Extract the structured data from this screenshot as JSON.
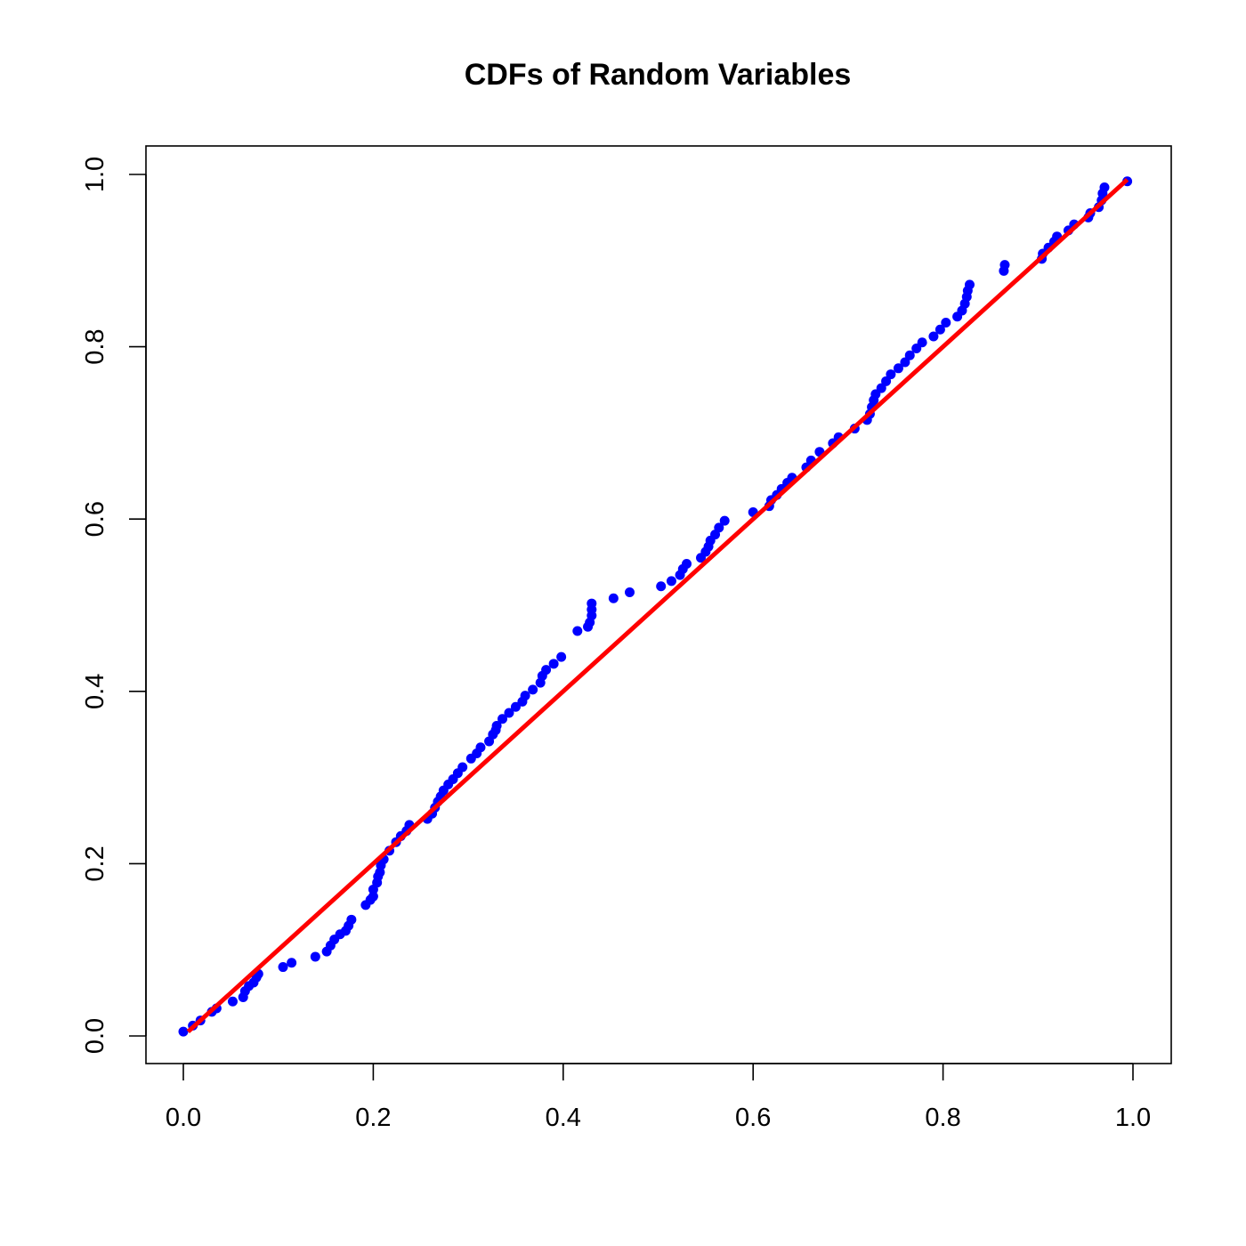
{
  "chart_data": {
    "type": "scatter",
    "title": "CDFs of Random Variables",
    "xlabel": "",
    "ylabel": "",
    "xlim": [
      0.0,
      1.0
    ],
    "ylim": [
      0.0,
      1.0
    ],
    "x_ticks": [
      "0.0",
      "0.2",
      "0.4",
      "0.6",
      "0.8",
      "1.0"
    ],
    "y_ticks": [
      "0.0",
      "0.2",
      "0.4",
      "0.6",
      "0.8",
      "1.0"
    ],
    "grid": false,
    "legend": "none",
    "colors": {
      "points": "#0000ff",
      "line": "#ff0000",
      "axes": "#000000",
      "background": "#ffffff"
    },
    "series": [
      {
        "kind": "points",
        "x": [
          0.0,
          0.01,
          0.018,
          0.03,
          0.035,
          0.052,
          0.063,
          0.065,
          0.069,
          0.074,
          0.077,
          0.079,
          0.105,
          0.114,
          0.139,
          0.151,
          0.155,
          0.159,
          0.165,
          0.171,
          0.174,
          0.177,
          0.192,
          0.197,
          0.2,
          0.2,
          0.204,
          0.205,
          0.207,
          0.208,
          0.211,
          0.217,
          0.224,
          0.229,
          0.235,
          0.238,
          0.257,
          0.262,
          0.265,
          0.268,
          0.271,
          0.274,
          0.279,
          0.284,
          0.289,
          0.294,
          0.303,
          0.309,
          0.313,
          0.322,
          0.326,
          0.329,
          0.33,
          0.336,
          0.343,
          0.35,
          0.357,
          0.36,
          0.368,
          0.376,
          0.378,
          0.382,
          0.39,
          0.398,
          0.415,
          0.426,
          0.428,
          0.43,
          0.43,
          0.43,
          0.453,
          0.47,
          0.503,
          0.514,
          0.523,
          0.526,
          0.53,
          0.545,
          0.55,
          0.553,
          0.555,
          0.56,
          0.564,
          0.57,
          0.6,
          0.617,
          0.619,
          0.625,
          0.63,
          0.636,
          0.641,
          0.656,
          0.661,
          0.67,
          0.684,
          0.69,
          0.707,
          0.72,
          0.723,
          0.725,
          0.727,
          0.729,
          0.735,
          0.74,
          0.745,
          0.753,
          0.76,
          0.765,
          0.772,
          0.778,
          0.79,
          0.797,
          0.803,
          0.815,
          0.82,
          0.823,
          0.825,
          0.826,
          0.828,
          0.864,
          0.865,
          0.904,
          0.905,
          0.911,
          0.917,
          0.92,
          0.932,
          0.938,
          0.953,
          0.955,
          0.964,
          0.967,
          0.968,
          0.97,
          0.994
        ],
        "y": [
          0.005,
          0.012,
          0.018,
          0.028,
          0.032,
          0.04,
          0.045,
          0.052,
          0.058,
          0.062,
          0.068,
          0.072,
          0.08,
          0.085,
          0.092,
          0.098,
          0.105,
          0.112,
          0.118,
          0.122,
          0.128,
          0.135,
          0.152,
          0.158,
          0.162,
          0.17,
          0.178,
          0.185,
          0.19,
          0.198,
          0.205,
          0.215,
          0.225,
          0.232,
          0.238,
          0.245,
          0.252,
          0.258,
          0.265,
          0.272,
          0.278,
          0.285,
          0.292,
          0.298,
          0.305,
          0.312,
          0.322,
          0.328,
          0.335,
          0.342,
          0.35,
          0.355,
          0.36,
          0.368,
          0.375,
          0.382,
          0.388,
          0.395,
          0.402,
          0.41,
          0.418,
          0.425,
          0.432,
          0.44,
          0.47,
          0.475,
          0.48,
          0.488,
          0.495,
          0.502,
          0.508,
          0.515,
          0.522,
          0.528,
          0.535,
          0.542,
          0.548,
          0.555,
          0.562,
          0.568,
          0.575,
          0.582,
          0.59,
          0.598,
          0.608,
          0.615,
          0.622,
          0.628,
          0.635,
          0.642,
          0.648,
          0.66,
          0.668,
          0.678,
          0.688,
          0.695,
          0.705,
          0.715,
          0.722,
          0.73,
          0.738,
          0.745,
          0.752,
          0.76,
          0.768,
          0.775,
          0.782,
          0.79,
          0.798,
          0.805,
          0.812,
          0.82,
          0.828,
          0.835,
          0.842,
          0.85,
          0.858,
          0.865,
          0.872,
          0.888,
          0.895,
          0.902,
          0.908,
          0.915,
          0.922,
          0.928,
          0.935,
          0.942,
          0.95,
          0.955,
          0.962,
          0.97,
          0.978,
          0.985,
          0.992
        ]
      },
      {
        "kind": "line",
        "x": [
          0.005,
          0.994
        ],
        "y": [
          0.005,
          0.994
        ]
      }
    ]
  }
}
